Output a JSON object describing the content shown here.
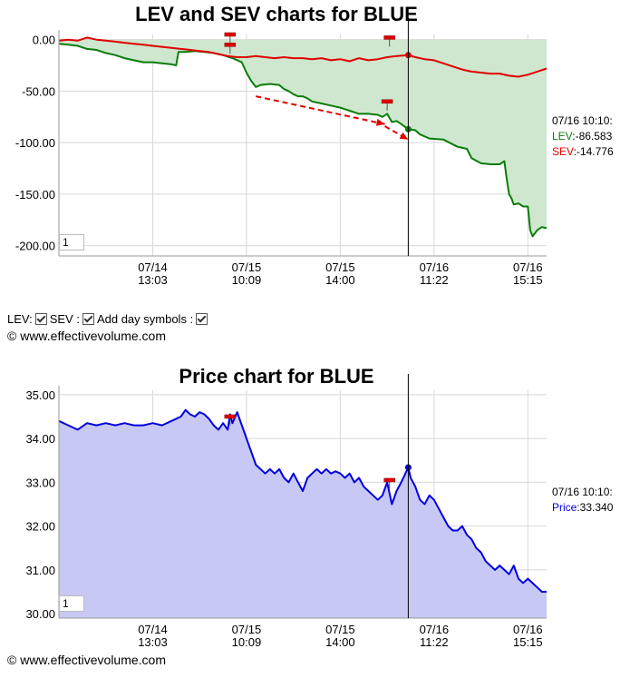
{
  "colors": {
    "lev": "#0a7d0a",
    "sev": "#e00000",
    "price": "#0000e0",
    "price_fill": "#c8c8f4",
    "lev_fill": "#cfe7cf",
    "sev_fill": "#d8c2b0",
    "annotation": "#e00000"
  },
  "chart1": {
    "title": "LEV and SEV charts for BLUE",
    "zoom_value": "1"
  },
  "chart2": {
    "title": "Price chart for BLUE",
    "zoom_value": "1"
  },
  "readout1": {
    "date": "07/16 10:10:",
    "lev_label": "LEV",
    "lev_value": ":-86.583",
    "sev_label": "SEV",
    "sev_value": ":-14.776"
  },
  "readout2": {
    "date": "07/16 10:10:",
    "price_label": "Price",
    "price_value": ":33.340"
  },
  "controls": {
    "lev_label": "LEV:",
    "sev_label": "SEV :",
    "day_symbols_label": "Add day symbols :"
  },
  "copyright1": "© www.effectivevolume.com",
  "copyright2": "© www.effectivevolume.com",
  "chart_data": [
    {
      "type": "area",
      "title": "LEV and SEV charts for BLUE",
      "x_ticks": [
        {
          "date": "07/14",
          "time": "13:03",
          "pos": 0.2
        },
        {
          "date": "07/15",
          "time": "10:09",
          "pos": 0.4
        },
        {
          "date": "07/15",
          "time": "14:00",
          "pos": 0.6
        },
        {
          "date": "07/16",
          "time": "11:22",
          "pos": 0.8
        },
        {
          "date": "07/16",
          "time": "15:15",
          "pos": 1.0
        }
      ],
      "y_ticks": [
        "0.00",
        "-50.00",
        "-100.00",
        "-150.00",
        "-200.00"
      ],
      "ylim": [
        -210,
        5
      ],
      "cursor": 0.745,
      "grid": true,
      "series": [
        {
          "name": "LEV",
          "color": "#0a7d0a",
          "points": [
            [
              0,
              -4
            ],
            [
              0.02,
              -5
            ],
            [
              0.04,
              -6
            ],
            [
              0.06,
              -9
            ],
            [
              0.08,
              -10
            ],
            [
              0.1,
              -13
            ],
            [
              0.12,
              -15
            ],
            [
              0.14,
              -18
            ],
            [
              0.16,
              -20
            ],
            [
              0.18,
              -22
            ],
            [
              0.2,
              -22
            ],
            [
              0.22,
              -23
            ],
            [
              0.24,
              -24
            ],
            [
              0.25,
              -25
            ],
            [
              0.255,
              -12
            ],
            [
              0.27,
              -12
            ],
            [
              0.29,
              -11
            ],
            [
              0.31,
              -12
            ],
            [
              0.33,
              -13
            ],
            [
              0.35,
              -15
            ],
            [
              0.37,
              -18
            ],
            [
              0.39,
              -22
            ],
            [
              0.4,
              -32
            ],
            [
              0.41,
              -40
            ],
            [
              0.42,
              -46
            ],
            [
              0.43,
              -44
            ],
            [
              0.45,
              -43
            ],
            [
              0.47,
              -44
            ],
            [
              0.48,
              -48
            ],
            [
              0.49,
              -50
            ],
            [
              0.5,
              -53
            ],
            [
              0.51,
              -55
            ],
            [
              0.52,
              -55
            ],
            [
              0.53,
              -57
            ],
            [
              0.54,
              -60
            ],
            [
              0.56,
              -62
            ],
            [
              0.58,
              -64
            ],
            [
              0.6,
              -66
            ],
            [
              0.62,
              -69
            ],
            [
              0.64,
              -72
            ],
            [
              0.66,
              -72
            ],
            [
              0.68,
              -73
            ],
            [
              0.69,
              -75
            ],
            [
              0.7,
              -72
            ],
            [
              0.71,
              -80
            ],
            [
              0.72,
              -79
            ],
            [
              0.73,
              -82
            ],
            [
              0.745,
              -87
            ],
            [
              0.76,
              -88
            ],
            [
              0.77,
              -92
            ],
            [
              0.79,
              -96
            ],
            [
              0.82,
              -97
            ],
            [
              0.85,
              -104
            ],
            [
              0.87,
              -106
            ],
            [
              0.88,
              -115
            ],
            [
              0.9,
              -120
            ],
            [
              0.92,
              -121
            ],
            [
              0.94,
              -121
            ],
            [
              0.95,
              -118
            ],
            [
              0.955,
              -135
            ],
            [
              0.96,
              -150
            ],
            [
              0.965,
              -154
            ],
            [
              0.97,
              -160
            ],
            [
              0.98,
              -159
            ],
            [
              0.99,
              -162
            ],
            [
              1.0,
              -162
            ],
            [
              1.005,
              -185
            ],
            [
              1.01,
              -191
            ],
            [
              1.02,
              -185
            ],
            [
              1.03,
              -182
            ],
            [
              1.04,
              -183
            ]
          ]
        },
        {
          "name": "SEV",
          "color": "#e00000",
          "points": [
            [
              0,
              -1
            ],
            [
              0.02,
              0
            ],
            [
              0.04,
              -1
            ],
            [
              0.06,
              2
            ],
            [
              0.08,
              0
            ],
            [
              0.1,
              -1
            ],
            [
              0.12,
              -2
            ],
            [
              0.14,
              -3
            ],
            [
              0.16,
              -4
            ],
            [
              0.18,
              -5
            ],
            [
              0.2,
              -6
            ],
            [
              0.22,
              -7
            ],
            [
              0.24,
              -8
            ],
            [
              0.26,
              -9
            ],
            [
              0.28,
              -10
            ],
            [
              0.3,
              -11
            ],
            [
              0.32,
              -12
            ],
            [
              0.34,
              -14
            ],
            [
              0.36,
              -16
            ],
            [
              0.38,
              -17
            ],
            [
              0.4,
              -17
            ],
            [
              0.42,
              -16
            ],
            [
              0.44,
              -17
            ],
            [
              0.46,
              -18
            ],
            [
              0.48,
              -17
            ],
            [
              0.5,
              -18
            ],
            [
              0.52,
              -18
            ],
            [
              0.54,
              -19
            ],
            [
              0.56,
              -18
            ],
            [
              0.58,
              -20
            ],
            [
              0.6,
              -19
            ],
            [
              0.62,
              -21
            ],
            [
              0.64,
              -18
            ],
            [
              0.66,
              -20
            ],
            [
              0.68,
              -19
            ],
            [
              0.7,
              -17
            ],
            [
              0.72,
              -16
            ],
            [
              0.745,
              -15
            ],
            [
              0.76,
              -17
            ],
            [
              0.78,
              -19
            ],
            [
              0.8,
              -20
            ],
            [
              0.82,
              -23
            ],
            [
              0.84,
              -26
            ],
            [
              0.86,
              -29
            ],
            [
              0.88,
              -31
            ],
            [
              0.9,
              -32
            ],
            [
              0.92,
              -33
            ],
            [
              0.94,
              -33
            ],
            [
              0.96,
              -35
            ],
            [
              0.98,
              -36
            ],
            [
              1.0,
              -34
            ],
            [
              1.02,
              -31
            ],
            [
              1.04,
              -28
            ]
          ]
        }
      ],
      "annotations": [
        {
          "type": "arrow",
          "from": [
            0.42,
            -55
          ],
          "to": [
            0.695,
            -82
          ]
        },
        {
          "type": "arrow",
          "from": [
            0.695,
            -84
          ],
          "to": [
            0.745,
            -97
          ]
        }
      ],
      "markers": [
        {
          "x": 0.365,
          "y": 5
        },
        {
          "x": 0.365,
          "y": -5
        },
        {
          "x": 0.705,
          "y": 2
        },
        {
          "x": 0.7,
          "y": -60
        }
      ]
    },
    {
      "type": "area",
      "title": "Price chart for BLUE",
      "x_ticks": [
        {
          "date": "07/14",
          "time": "13:03",
          "pos": 0.2
        },
        {
          "date": "07/15",
          "time": "10:09",
          "pos": 0.4
        },
        {
          "date": "07/15",
          "time": "14:00",
          "pos": 0.6
        },
        {
          "date": "07/16",
          "time": "11:22",
          "pos": 0.8
        },
        {
          "date": "07/16",
          "time": "15:15",
          "pos": 1.0
        }
      ],
      "y_ticks": [
        "35.00",
        "34.00",
        "33.00",
        "32.00",
        "31.00",
        "30.00"
      ],
      "ylim": [
        29.9,
        35.1
      ],
      "cursor": 0.745,
      "grid": true,
      "series": [
        {
          "name": "Price",
          "color": "#0000e0",
          "points": [
            [
              0,
              34.4
            ],
            [
              0.02,
              34.3
            ],
            [
              0.04,
              34.2
            ],
            [
              0.06,
              34.35
            ],
            [
              0.08,
              34.3
            ],
            [
              0.1,
              34.35
            ],
            [
              0.12,
              34.3
            ],
            [
              0.14,
              34.35
            ],
            [
              0.16,
              34.3
            ],
            [
              0.18,
              34.3
            ],
            [
              0.2,
              34.35
            ],
            [
              0.22,
              34.3
            ],
            [
              0.24,
              34.4
            ],
            [
              0.26,
              34.5
            ],
            [
              0.27,
              34.65
            ],
            [
              0.28,
              34.55
            ],
            [
              0.29,
              34.5
            ],
            [
              0.3,
              34.6
            ],
            [
              0.31,
              34.55
            ],
            [
              0.32,
              34.45
            ],
            [
              0.33,
              34.3
            ],
            [
              0.34,
              34.2
            ],
            [
              0.35,
              34.35
            ],
            [
              0.36,
              34.2
            ],
            [
              0.365,
              34.55
            ],
            [
              0.37,
              34.35
            ],
            [
              0.38,
              34.6
            ],
            [
              0.39,
              34.3
            ],
            [
              0.4,
              34.0
            ],
            [
              0.41,
              33.7
            ],
            [
              0.42,
              33.4
            ],
            [
              0.43,
              33.3
            ],
            [
              0.44,
              33.2
            ],
            [
              0.45,
              33.3
            ],
            [
              0.46,
              33.2
            ],
            [
              0.47,
              33.3
            ],
            [
              0.48,
              33.1
            ],
            [
              0.49,
              33.0
            ],
            [
              0.5,
              33.2
            ],
            [
              0.51,
              33.0
            ],
            [
              0.52,
              32.8
            ],
            [
              0.53,
              33.1
            ],
            [
              0.54,
              33.2
            ],
            [
              0.55,
              33.3
            ],
            [
              0.56,
              33.2
            ],
            [
              0.57,
              33.3
            ],
            [
              0.58,
              33.2
            ],
            [
              0.59,
              33.25
            ],
            [
              0.6,
              33.2
            ],
            [
              0.61,
              33.1
            ],
            [
              0.62,
              33.2
            ],
            [
              0.63,
              33.0
            ],
            [
              0.64,
              33.1
            ],
            [
              0.65,
              32.9
            ],
            [
              0.66,
              32.8
            ],
            [
              0.67,
              32.7
            ],
            [
              0.68,
              32.6
            ],
            [
              0.69,
              32.7
            ],
            [
              0.7,
              33.0
            ],
            [
              0.71,
              32.5
            ],
            [
              0.72,
              32.8
            ],
            [
              0.73,
              33.0
            ],
            [
              0.745,
              33.34
            ],
            [
              0.75,
              33.1
            ],
            [
              0.76,
              32.9
            ],
            [
              0.77,
              32.6
            ],
            [
              0.78,
              32.5
            ],
            [
              0.79,
              32.7
            ],
            [
              0.8,
              32.6
            ],
            [
              0.81,
              32.4
            ],
            [
              0.82,
              32.2
            ],
            [
              0.83,
              32.0
            ],
            [
              0.84,
              31.9
            ],
            [
              0.85,
              31.9
            ],
            [
              0.86,
              32.0
            ],
            [
              0.87,
              31.8
            ],
            [
              0.88,
              31.7
            ],
            [
              0.89,
              31.5
            ],
            [
              0.9,
              31.4
            ],
            [
              0.91,
              31.2
            ],
            [
              0.92,
              31.1
            ],
            [
              0.93,
              31.0
            ],
            [
              0.94,
              31.1
            ],
            [
              0.95,
              31.0
            ],
            [
              0.96,
              30.9
            ],
            [
              0.97,
              31.1
            ],
            [
              0.98,
              30.8
            ],
            [
              0.99,
              30.7
            ],
            [
              1.0,
              30.8
            ],
            [
              1.01,
              30.7
            ],
            [
              1.02,
              30.6
            ],
            [
              1.03,
              30.5
            ],
            [
              1.04,
              30.5
            ]
          ]
        }
      ],
      "markers": [
        {
          "x": 0.365,
          "y": 34.5
        },
        {
          "x": 0.705,
          "y": 33.05
        }
      ]
    }
  ]
}
